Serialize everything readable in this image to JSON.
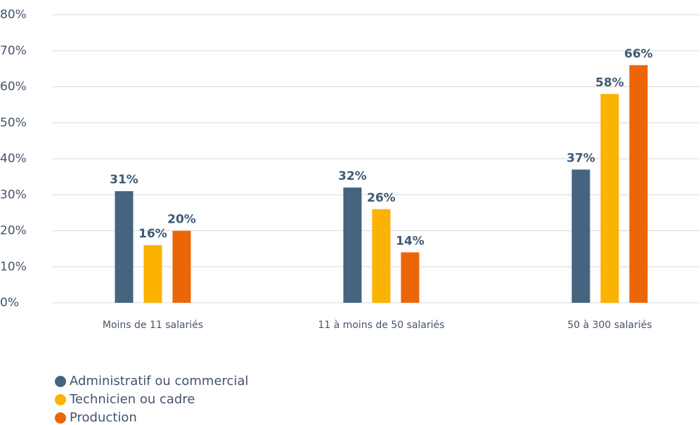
{
  "chart_data": {
    "type": "bar",
    "categories": [
      "Moins de 11 salariés",
      "11 à moins de 50 salariés",
      "50 à 300 salariés"
    ],
    "series": [
      {
        "name": "Administratif ou commercial",
        "color": "#44647f",
        "values": [
          31,
          32,
          37
        ],
        "value_labels": [
          "31%",
          "32%",
          "37%"
        ]
      },
      {
        "name": "Technicien ou cadre",
        "color": "#fbb200",
        "values": [
          16,
          26,
          58
        ],
        "value_labels": [
          "16%",
          "26%",
          "58%"
        ]
      },
      {
        "name": "Production",
        "color": "#ec6608",
        "values": [
          20,
          14,
          66
        ],
        "value_labels": [
          "20%",
          "14%",
          "66%"
        ]
      }
    ],
    "ylim": [
      0,
      80
    ],
    "yticks": [
      {
        "value": 0,
        "label": "0%"
      },
      {
        "value": 10,
        "label": "10%"
      },
      {
        "value": 20,
        "label": "20%"
      },
      {
        "value": 30,
        "label": "30%"
      },
      {
        "value": 40,
        "label": "40%"
      },
      {
        "value": 50,
        "label": "50%"
      },
      {
        "value": 60,
        "label": "60%"
      },
      {
        "value": 70,
        "label": "70%"
      },
      {
        "value": 80,
        "label": "80%"
      }
    ],
    "grid": true,
    "legend": "bottom-left"
  }
}
